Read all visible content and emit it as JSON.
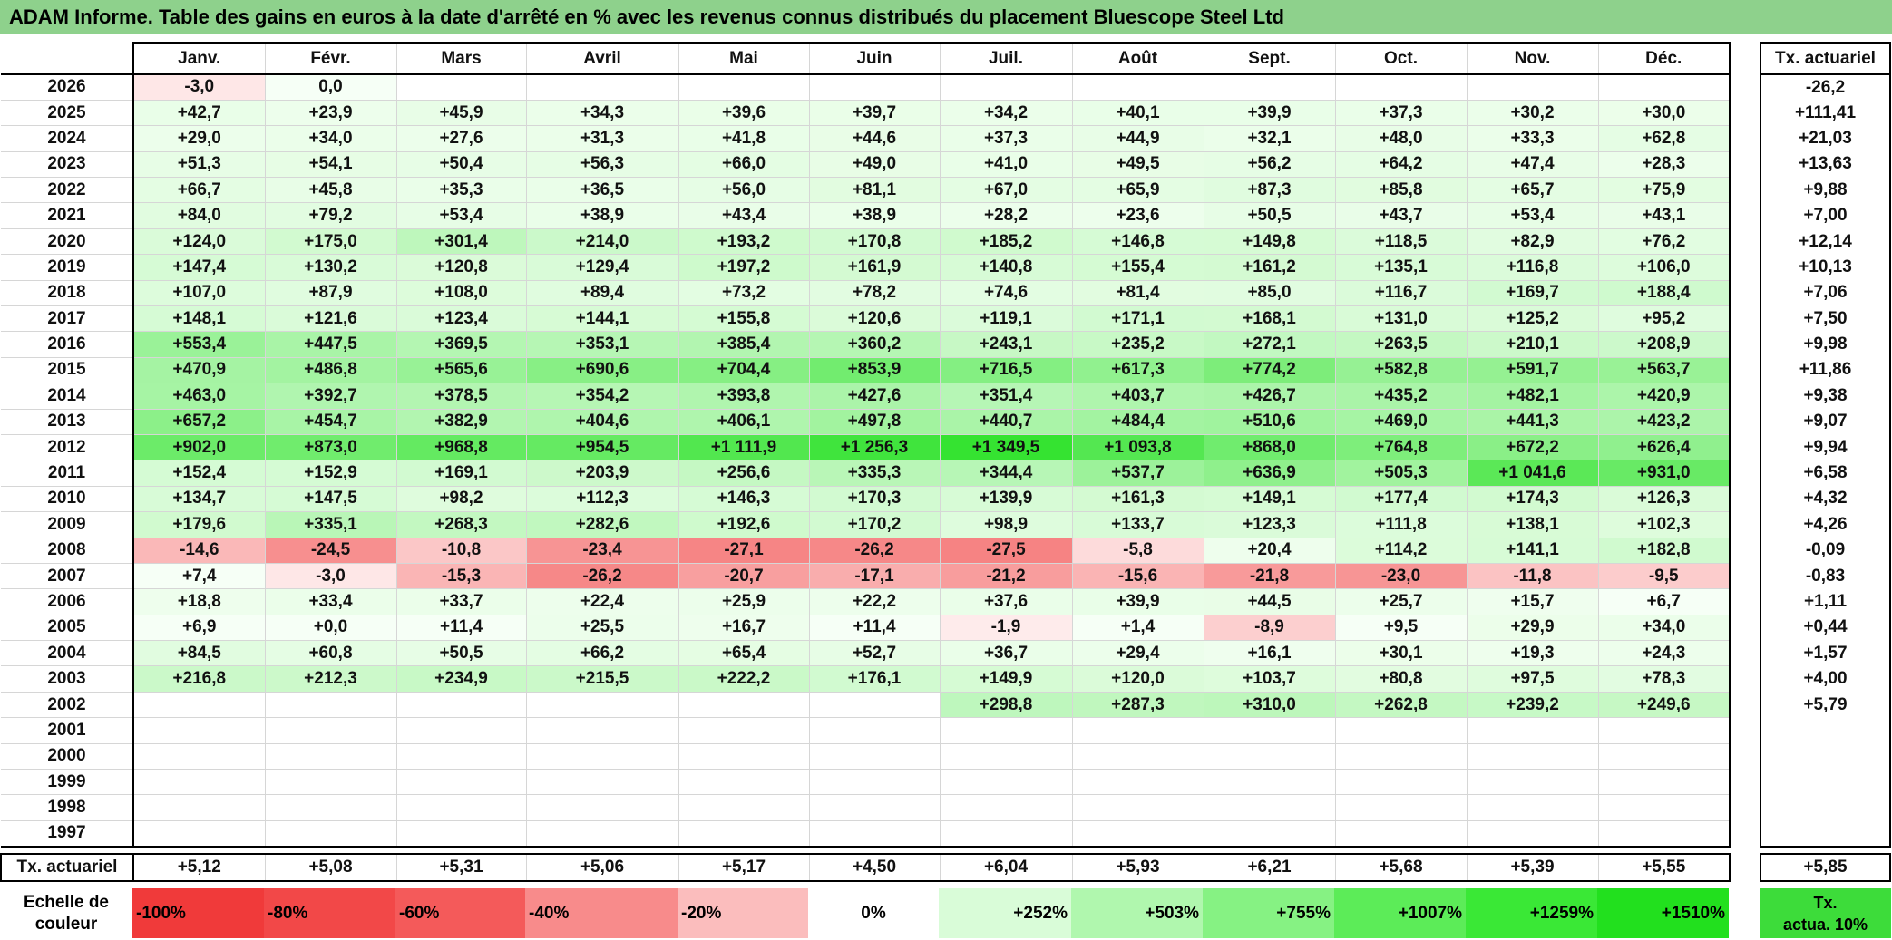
{
  "title": "ADAM Informe. Table des gains en euros à la date d'arrêté en % avec les revenus connus distribués du placement Bluescope Steel Ltd",
  "months": [
    "Janv.",
    "Févr.",
    "Mars",
    "Avril",
    "Mai",
    "Juin",
    "Juil.",
    "Août",
    "Sept.",
    "Oct.",
    "Nov.",
    "Déc."
  ],
  "rate_header": "Tx. actuariel",
  "rows": [
    {
      "year": "2026",
      "values": [
        "-3,0",
        "0,0",
        "",
        "",
        "",
        "",
        "",
        "",
        "",
        "",
        "",
        ""
      ],
      "rate": "-26,2"
    },
    {
      "year": "2025",
      "values": [
        "+42,7",
        "+23,9",
        "+45,9",
        "+34,3",
        "+39,6",
        "+39,7",
        "+34,2",
        "+40,1",
        "+39,9",
        "+37,3",
        "+30,2",
        "+30,0"
      ],
      "rate": "+111,41"
    },
    {
      "year": "2024",
      "values": [
        "+29,0",
        "+34,0",
        "+27,6",
        "+31,3",
        "+41,8",
        "+44,6",
        "+37,3",
        "+44,9",
        "+32,1",
        "+48,0",
        "+33,3",
        "+62,8"
      ],
      "rate": "+21,03"
    },
    {
      "year": "2023",
      "values": [
        "+51,3",
        "+54,1",
        "+50,4",
        "+56,3",
        "+66,0",
        "+49,0",
        "+41,0",
        "+49,5",
        "+56,2",
        "+64,2",
        "+47,4",
        "+28,3"
      ],
      "rate": "+13,63"
    },
    {
      "year": "2022",
      "values": [
        "+66,7",
        "+45,8",
        "+35,3",
        "+36,5",
        "+56,0",
        "+81,1",
        "+67,0",
        "+65,9",
        "+87,3",
        "+85,8",
        "+65,7",
        "+75,9"
      ],
      "rate": "+9,88"
    },
    {
      "year": "2021",
      "values": [
        "+84,0",
        "+79,2",
        "+53,4",
        "+38,9",
        "+43,4",
        "+38,9",
        "+28,2",
        "+23,6",
        "+50,5",
        "+43,7",
        "+53,4",
        "+43,1"
      ],
      "rate": "+7,00"
    },
    {
      "year": "2020",
      "values": [
        "+124,0",
        "+175,0",
        "+301,4",
        "+214,0",
        "+193,2",
        "+170,8",
        "+185,2",
        "+146,8",
        "+149,8",
        "+118,5",
        "+82,9",
        "+76,2"
      ],
      "rate": "+12,14"
    },
    {
      "year": "2019",
      "values": [
        "+147,4",
        "+130,2",
        "+120,8",
        "+129,4",
        "+197,2",
        "+161,9",
        "+140,8",
        "+155,4",
        "+161,2",
        "+135,1",
        "+116,8",
        "+106,0"
      ],
      "rate": "+10,13"
    },
    {
      "year": "2018",
      "values": [
        "+107,0",
        "+87,9",
        "+108,0",
        "+89,4",
        "+73,2",
        "+78,2",
        "+74,6",
        "+81,4",
        "+85,0",
        "+116,7",
        "+169,7",
        "+188,4"
      ],
      "rate": "+7,06"
    },
    {
      "year": "2017",
      "values": [
        "+148,1",
        "+121,6",
        "+123,4",
        "+144,1",
        "+155,8",
        "+120,6",
        "+119,1",
        "+171,1",
        "+168,1",
        "+131,0",
        "+125,2",
        "+95,2"
      ],
      "rate": "+7,50"
    },
    {
      "year": "2016",
      "values": [
        "+553,4",
        "+447,5",
        "+369,5",
        "+353,1",
        "+385,4",
        "+360,2",
        "+243,1",
        "+235,2",
        "+272,1",
        "+263,5",
        "+210,1",
        "+208,9"
      ],
      "rate": "+9,98"
    },
    {
      "year": "2015",
      "values": [
        "+470,9",
        "+486,8",
        "+565,6",
        "+690,6",
        "+704,4",
        "+853,9",
        "+716,5",
        "+617,3",
        "+774,2",
        "+582,8",
        "+591,7",
        "+563,7"
      ],
      "rate": "+11,86"
    },
    {
      "year": "2014",
      "values": [
        "+463,0",
        "+392,7",
        "+378,5",
        "+354,2",
        "+393,8",
        "+427,6",
        "+351,4",
        "+403,7",
        "+426,7",
        "+435,2",
        "+482,1",
        "+420,9"
      ],
      "rate": "+9,38"
    },
    {
      "year": "2013",
      "values": [
        "+657,2",
        "+454,7",
        "+382,9",
        "+404,6",
        "+406,1",
        "+497,8",
        "+440,7",
        "+484,4",
        "+510,6",
        "+469,0",
        "+441,3",
        "+423,2"
      ],
      "rate": "+9,07"
    },
    {
      "year": "2012",
      "values": [
        "+902,0",
        "+873,0",
        "+968,8",
        "+954,5",
        "+1 111,9",
        "+1 256,3",
        "+1 349,5",
        "+1 093,8",
        "+868,0",
        "+764,8",
        "+672,2",
        "+626,4"
      ],
      "rate": "+9,94"
    },
    {
      "year": "2011",
      "values": [
        "+152,4",
        "+152,9",
        "+169,1",
        "+203,9",
        "+256,6",
        "+335,3",
        "+344,4",
        "+537,7",
        "+636,9",
        "+505,3",
        "+1 041,6",
        "+931,0"
      ],
      "rate": "+6,58"
    },
    {
      "year": "2010",
      "values": [
        "+134,7",
        "+147,5",
        "+98,2",
        "+112,3",
        "+146,3",
        "+170,3",
        "+139,9",
        "+161,3",
        "+149,1",
        "+177,4",
        "+174,3",
        "+126,3"
      ],
      "rate": "+4,32"
    },
    {
      "year": "2009",
      "values": [
        "+179,6",
        "+335,1",
        "+268,3",
        "+282,6",
        "+192,6",
        "+170,2",
        "+98,9",
        "+133,7",
        "+123,3",
        "+111,8",
        "+138,1",
        "+102,3"
      ],
      "rate": "+4,26"
    },
    {
      "year": "2008",
      "values": [
        "-14,6",
        "-24,5",
        "-10,8",
        "-23,4",
        "-27,1",
        "-26,2",
        "-27,5",
        "-5,8",
        "+20,4",
        "+114,2",
        "+141,1",
        "+182,8"
      ],
      "rate": "-0,09"
    },
    {
      "year": "2007",
      "values": [
        "+7,4",
        "-3,0",
        "-15,3",
        "-26,2",
        "-20,7",
        "-17,1",
        "-21,2",
        "-15,6",
        "-21,8",
        "-23,0",
        "-11,8",
        "-9,5"
      ],
      "rate": "-0,83"
    },
    {
      "year": "2006",
      "values": [
        "+18,8",
        "+33,4",
        "+33,7",
        "+22,4",
        "+25,9",
        "+22,2",
        "+37,6",
        "+39,9",
        "+44,5",
        "+25,7",
        "+15,7",
        "+6,7"
      ],
      "rate": "+1,11"
    },
    {
      "year": "2005",
      "values": [
        "+6,9",
        "+0,0",
        "+11,4",
        "+25,5",
        "+16,7",
        "+11,4",
        "-1,9",
        "+1,4",
        "-8,9",
        "+9,5",
        "+29,9",
        "+34,0"
      ],
      "rate": "+0,44"
    },
    {
      "year": "2004",
      "values": [
        "+84,5",
        "+60,8",
        "+50,5",
        "+66,2",
        "+65,4",
        "+52,7",
        "+36,7",
        "+29,4",
        "+16,1",
        "+30,1",
        "+19,3",
        "+24,3"
      ],
      "rate": "+1,57"
    },
    {
      "year": "2003",
      "values": [
        "+216,8",
        "+212,3",
        "+234,9",
        "+215,5",
        "+222,2",
        "+176,1",
        "+149,9",
        "+120,0",
        "+103,7",
        "+80,8",
        "+97,5",
        "+78,3"
      ],
      "rate": "+4,00"
    },
    {
      "year": "2002",
      "values": [
        "",
        "",
        "",
        "",
        "",
        "",
        "+298,8",
        "+287,3",
        "+310,0",
        "+262,8",
        "+239,2",
        "+249,6"
      ],
      "rate": "+5,79"
    },
    {
      "year": "2001",
      "values": [
        "",
        "",
        "",
        "",
        "",
        "",
        "",
        "",
        "",
        "",
        "",
        ""
      ],
      "rate": ""
    },
    {
      "year": "2000",
      "values": [
        "",
        "",
        "",
        "",
        "",
        "",
        "",
        "",
        "",
        "",
        "",
        ""
      ],
      "rate": ""
    },
    {
      "year": "1999",
      "values": [
        "",
        "",
        "",
        "",
        "",
        "",
        "",
        "",
        "",
        "",
        "",
        ""
      ],
      "rate": ""
    },
    {
      "year": "1998",
      "values": [
        "",
        "",
        "",
        "",
        "",
        "",
        "",
        "",
        "",
        "",
        "",
        ""
      ],
      "rate": ""
    },
    {
      "year": "1997",
      "values": [
        "",
        "",
        "",
        "",
        "",
        "",
        "",
        "",
        "",
        "",
        "",
        ""
      ],
      "rate": ""
    }
  ],
  "monthly_rate_label": "Tx. actuariel",
  "monthly_rates": [
    "+5,12",
    "+5,08",
    "+5,31",
    "+5,06",
    "+5,17",
    "+4,50",
    "+6,04",
    "+5,93",
    "+6,21",
    "+5,68",
    "+5,39",
    "+5,55"
  ],
  "overall_rate": "+5,85",
  "scale": {
    "label_line1": "Echelle de",
    "label_line2": "couleur",
    "swatches": [
      {
        "label": "-100%",
        "color": "#f03a3a",
        "align": "left"
      },
      {
        "label": "-80%",
        "color": "#f24848",
        "align": "left"
      },
      {
        "label": "-60%",
        "color": "#f45a5a",
        "align": "left"
      },
      {
        "label": "-40%",
        "color": "#f88b8b",
        "align": "left"
      },
      {
        "label": "-20%",
        "color": "#fbbdbd",
        "align": "left"
      },
      {
        "label": "0%",
        "color": "#ffffff",
        "align": "center"
      },
      {
        "label": "+252%",
        "color": "#d9fcd8",
        "align": "right"
      },
      {
        "label": "+503%",
        "color": "#b0f7ae",
        "align": "right"
      },
      {
        "label": "+755%",
        "color": "#86f283",
        "align": "right"
      },
      {
        "label": "+1007%",
        "color": "#5cec58",
        "align": "right"
      },
      {
        "label": "+1259%",
        "color": "#3ae836",
        "align": "right"
      },
      {
        "label": "+1510%",
        "color": "#22e01e",
        "align": "right"
      }
    ],
    "rate_line1": "Tx.",
    "rate_line2": "actua. 10%"
  },
  "colors": {
    "title_bg": "#8ed18c",
    "positive_max": "#22e01e",
    "negative_max": "#f03a3a",
    "rate_scale": "#3ddc3a"
  }
}
